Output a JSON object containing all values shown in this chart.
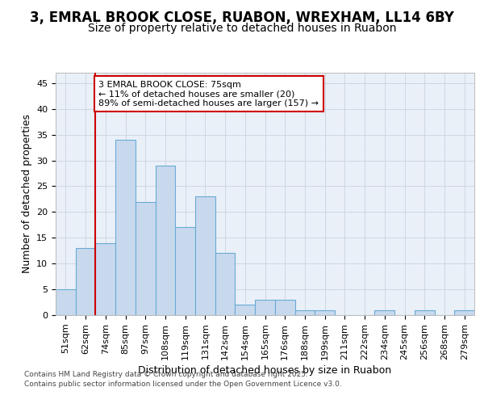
{
  "title_line1": "3, EMRAL BROOK CLOSE, RUABON, WREXHAM, LL14 6BY",
  "title_line2": "Size of property relative to detached houses in Ruabon",
  "xlabel": "Distribution of detached houses by size in Ruabon",
  "ylabel": "Number of detached properties",
  "categories": [
    "51sqm",
    "62sqm",
    "74sqm",
    "85sqm",
    "97sqm",
    "108sqm",
    "119sqm",
    "131sqm",
    "142sqm",
    "154sqm",
    "165sqm",
    "176sqm",
    "188sqm",
    "199sqm",
    "211sqm",
    "222sqm",
    "234sqm",
    "245sqm",
    "256sqm",
    "268sqm",
    "279sqm"
  ],
  "values": [
    5,
    13,
    14,
    34,
    22,
    29,
    17,
    23,
    12,
    2,
    3,
    3,
    1,
    1,
    0,
    0,
    1,
    0,
    1,
    0,
    1
  ],
  "bar_color": "#c8d9ee",
  "bar_edge_color": "#6aaad4",
  "grid_color": "#c8d4e0",
  "background_color": "#eaf0f8",
  "fig_background": "#ffffff",
  "annotation_text": "3 EMRAL BROOK CLOSE: 75sqm\n← 11% of detached houses are smaller (20)\n89% of semi-detached houses are larger (157) →",
  "annotation_box_color": "#ffffff",
  "annotation_box_edge": "#cc0000",
  "vline_color": "#cc0000",
  "vline_x_index": 2,
  "ylim": [
    0,
    47
  ],
  "yticks": [
    0,
    5,
    10,
    15,
    20,
    25,
    30,
    35,
    40,
    45
  ],
  "title_fontsize": 12,
  "subtitle_fontsize": 10,
  "axis_label_fontsize": 9,
  "tick_fontsize": 8,
  "annotation_fontsize": 8,
  "footer_fontsize": 6.5,
  "footer": "Contains HM Land Registry data © Crown copyright and database right 2025.\nContains public sector information licensed under the Open Government Licence v3.0."
}
